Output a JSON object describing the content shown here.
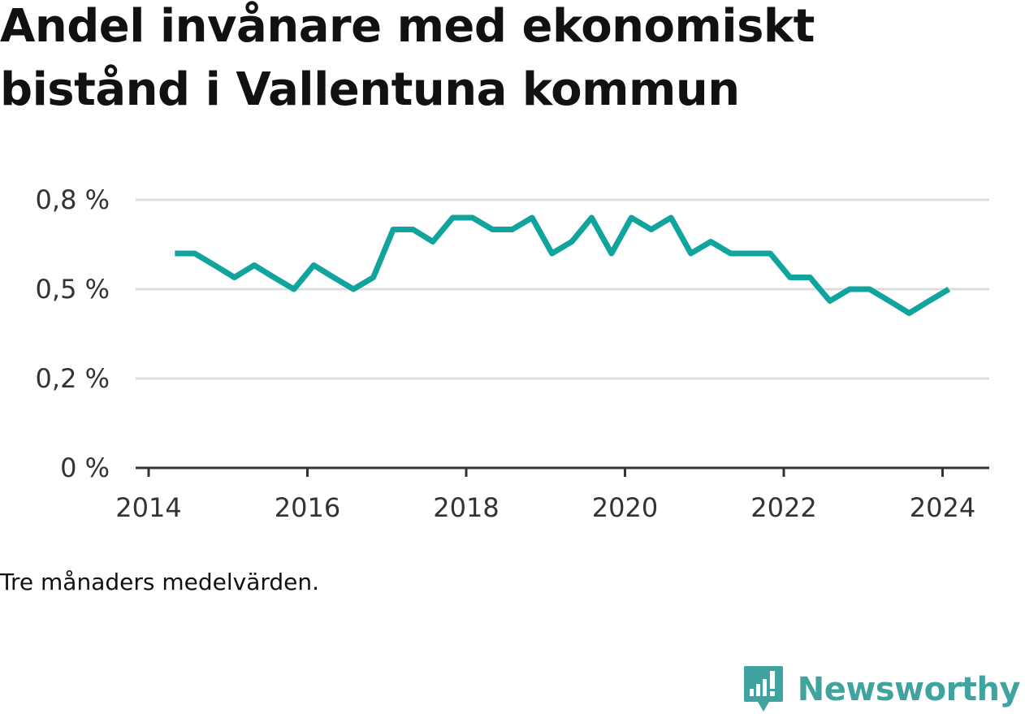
{
  "title": "Andel invånare med ekonomiskt bistånd i Vallentuna kommun",
  "note": "Tre månaders medelvärden.",
  "brand": "Newsworthy",
  "colors": {
    "line": "#11a39d",
    "brand": "#40a3a0",
    "grid": "#dcdcdc",
    "axis": "#333333"
  },
  "chart_data": {
    "type": "line",
    "title": "Andel invånare med ekonomiskt bistånd i Vallentuna kommun",
    "xlabel": "",
    "ylabel": "",
    "grid": true,
    "x_ticks": [
      "2014",
      "2016",
      "2018",
      "2020",
      "2022",
      "2024"
    ],
    "y_ticks": [
      "0 %",
      "0,2 %",
      "0,5 %",
      "0,8 %"
    ],
    "y_tick_values": [
      0,
      0.25,
      0.5,
      0.75
    ],
    "ylim": [
      0,
      0.75
    ],
    "x_unit": "year (decimal)",
    "y_unit": "percent",
    "series": [
      {
        "x": [
          2014.33,
          2014.58,
          2014.83,
          2015.08,
          2015.33,
          2015.58,
          2015.83,
          2016.08,
          2016.33,
          2016.58,
          2016.83,
          2017.08,
          2017.33,
          2017.58,
          2017.83,
          2018.08,
          2018.33,
          2018.58,
          2018.83,
          2019.08,
          2019.33,
          2019.58,
          2019.83,
          2020.08,
          2020.33,
          2020.58,
          2020.83,
          2021.08,
          2021.33,
          2021.58,
          2021.83,
          2022.08,
          2022.33,
          2022.58,
          2022.83,
          2023.08,
          2023.33,
          2023.58,
          2023.83,
          2024.08
        ],
        "values": [
          0.6,
          0.6,
          0.567,
          0.533,
          0.567,
          0.533,
          0.5,
          0.567,
          0.533,
          0.5,
          0.533,
          0.667,
          0.667,
          0.633,
          0.7,
          0.7,
          0.667,
          0.667,
          0.7,
          0.6,
          0.633,
          0.7,
          0.6,
          0.7,
          0.667,
          0.7,
          0.6,
          0.633,
          0.6,
          0.6,
          0.6,
          0.533,
          0.533,
          0.467,
          0.5,
          0.5,
          0.467,
          0.433,
          0.467,
          0.5
        ]
      }
    ]
  }
}
